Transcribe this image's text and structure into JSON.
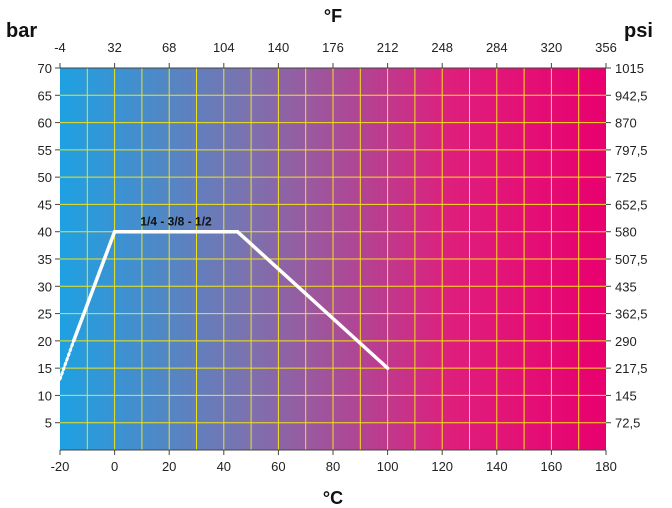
{
  "chart_data": {
    "type": "line",
    "bottom_axis": {
      "unit": "°C",
      "range": [
        -20,
        180
      ],
      "ticks": [
        -20,
        0,
        20,
        40,
        60,
        80,
        100,
        120,
        140,
        160,
        180
      ]
    },
    "top_axis": {
      "unit": "°F",
      "range": [
        -4,
        356
      ],
      "ticks": [
        "-4",
        "32",
        "68",
        "104",
        "140",
        "176",
        "212",
        "248",
        "284",
        "320",
        "356"
      ]
    },
    "left_axis": {
      "unit": "bar",
      "range": [
        0,
        70
      ],
      "ticks": [
        5,
        10,
        15,
        20,
        25,
        30,
        35,
        40,
        45,
        50,
        55,
        60,
        65,
        70
      ]
    },
    "right_axis": {
      "unit": "psi",
      "ticks": [
        "72,5",
        "145",
        "217,5",
        "290",
        "362,5",
        "435",
        "507,5",
        "580",
        "652,5",
        "725",
        "797,5",
        "870",
        "942,5",
        "1015"
      ]
    },
    "grid": true,
    "background_gradient": [
      "#1ea1e2",
      "#7d71ae",
      "#df1e7c",
      "#e8006f"
    ],
    "grid_color": "#f0e21a",
    "series": [
      {
        "name": "1/4 - 3/8 - 1/2",
        "color": "#ffffff",
        "x": [
          -20,
          -15,
          0,
          45,
          100
        ],
        "y": [
          13,
          20,
          40,
          40,
          15
        ],
        "dashed_segment": [
          0,
          1
        ]
      }
    ]
  }
}
